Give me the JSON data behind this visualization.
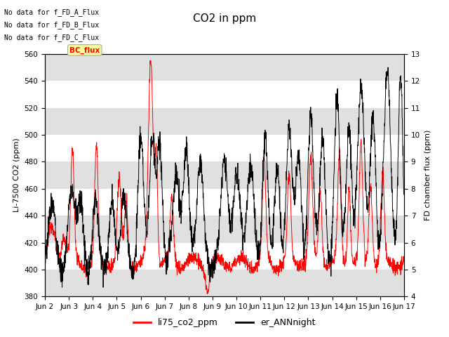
{
  "title": "CO2 in ppm",
  "ylabel_left": "Li-7500 CO2 (ppm)",
  "ylabel_right": "FD chamber flux (ppm)",
  "ylim_left": [
    380,
    560
  ],
  "ylim_right": [
    4.0,
    13.0
  ],
  "yticks_left": [
    380,
    400,
    420,
    440,
    460,
    480,
    500,
    520,
    540,
    560
  ],
  "yticks_right": [
    4.0,
    5.0,
    6.0,
    7.0,
    8.0,
    9.0,
    10.0,
    11.0,
    12.0,
    13.0
  ],
  "xtick_labels": [
    "Jun 2",
    "Jun 3",
    "Jun 4",
    "Jun 5",
    "Jun 6",
    "Jun 7",
    "Jun 8",
    "Jun 9",
    "Jun 10",
    "Jun 11",
    "Jun 12",
    "Jun 13",
    "Jun 14",
    "Jun 15",
    "Jun 16",
    "Jun 17"
  ],
  "no_data_texts": [
    "No data for f_FD_A_Flux",
    "No data for f_FD_B_Flux",
    "No data for f_FD_C_Flux"
  ],
  "bc_flux_label": "BC_flux",
  "legend_entries": [
    "li75_co2_ppm",
    "er_ANNnight"
  ],
  "line_color_red": "#ff0000",
  "line_color_black": "#000000",
  "bg_band_color": "#e0e0e0",
  "title_fontsize": 11,
  "label_fontsize": 8,
  "tick_fontsize": 7.5
}
